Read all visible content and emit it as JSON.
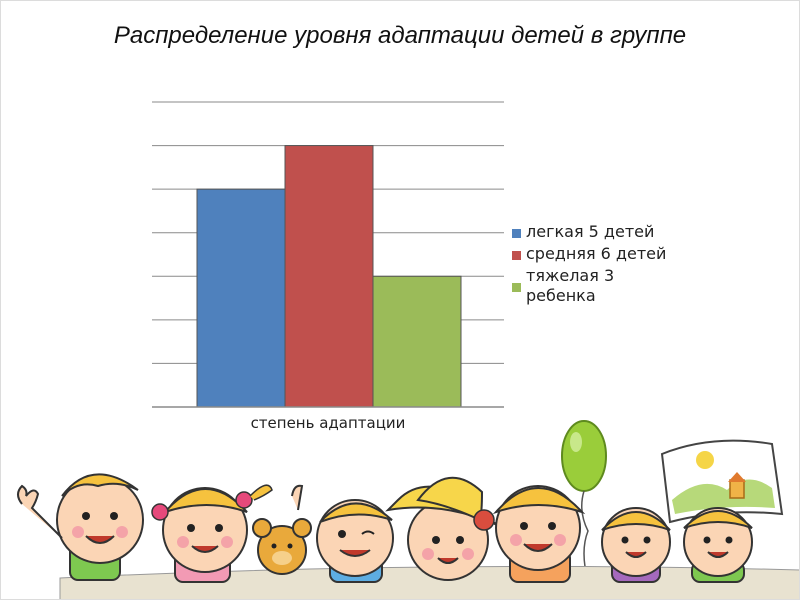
{
  "title": "Распределение уровня адаптации детей в группе",
  "chart_data": {
    "type": "bar",
    "categories": [
      "степень адаптации"
    ],
    "series": [
      {
        "name": "легкая  5 детей",
        "values": [
          5
        ],
        "color": "#4F81BD"
      },
      {
        "name": "средняя 6 детей",
        "values": [
          6
        ],
        "color": "#C0504D"
      },
      {
        "name": "тяжелая 3 ребенка",
        "values": [
          3
        ],
        "color": "#9BBB59"
      }
    ],
    "ylim": [
      0,
      7
    ],
    "yticks": [
      0,
      1,
      2,
      3,
      4,
      5,
      6,
      7
    ],
    "grid": true,
    "legend": "right",
    "xlabel": "",
    "ylabel": ""
  },
  "decoration": {
    "illustration": "cartoon-children-row",
    "icons": [
      "balloon-icon",
      "drawing-sign-icon",
      "teddy-bear-icon"
    ]
  }
}
